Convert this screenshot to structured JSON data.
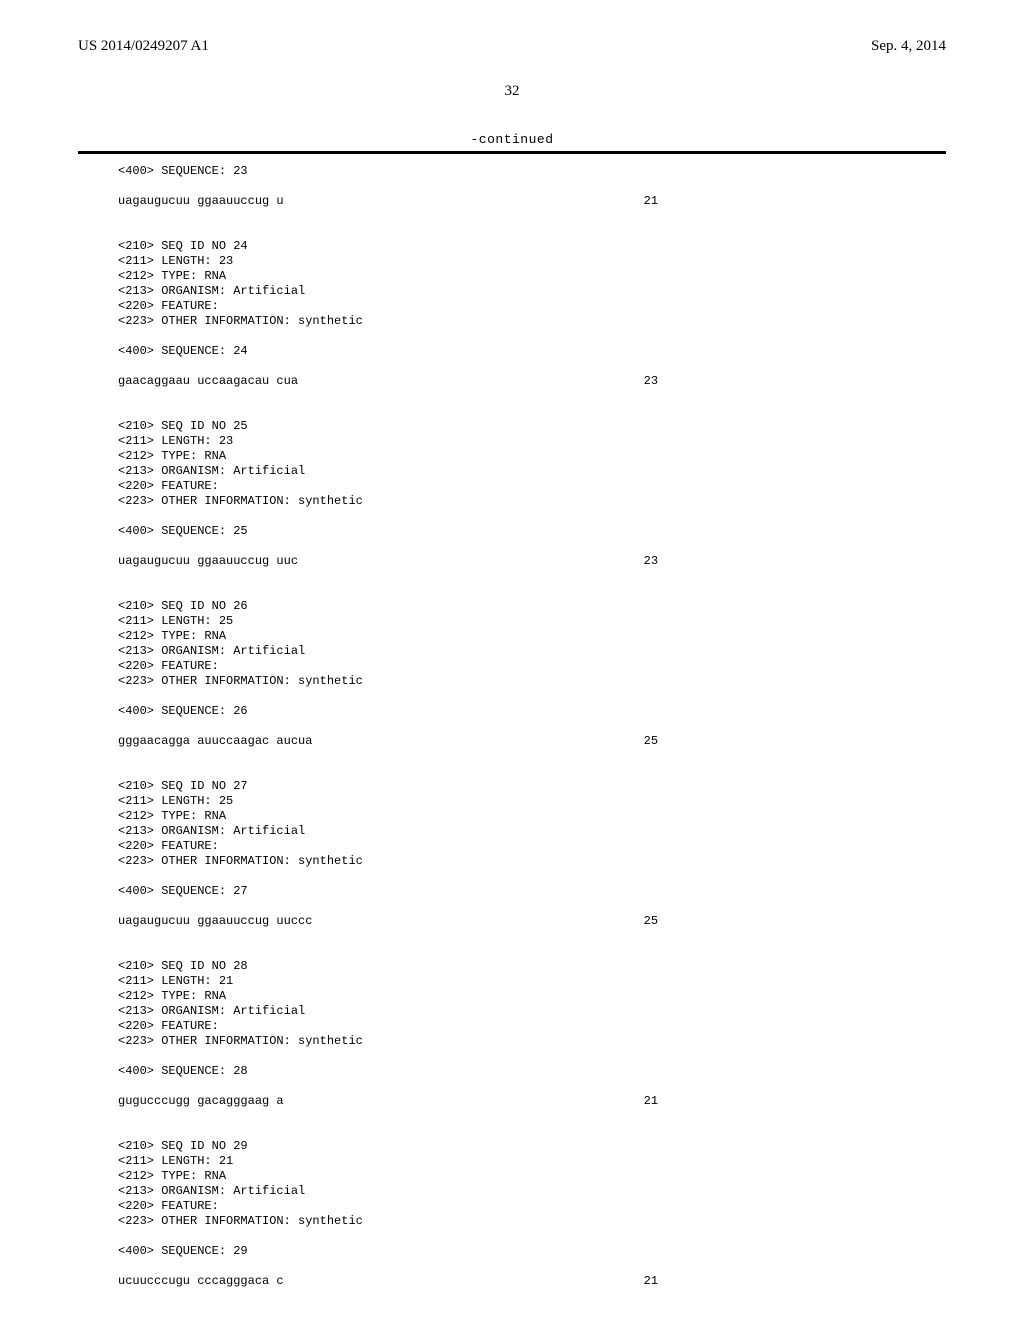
{
  "header": {
    "pub_number": "US 2014/0249207 A1",
    "pub_date": "Sep. 4, 2014"
  },
  "page_number": "32",
  "continued_label": "-continued",
  "entries": [
    {
      "pre_lines": [
        "<400> SEQUENCE: 23"
      ],
      "sequence": "uagaugucuu ggaauuccug u",
      "length": "21"
    },
    {
      "pre_lines": [
        "<210> SEQ ID NO 24",
        "<211> LENGTH: 23",
        "<212> TYPE: RNA",
        "<213> ORGANISM: Artificial",
        "<220> FEATURE:",
        "<223> OTHER INFORMATION: synthetic",
        "",
        "<400> SEQUENCE: 24"
      ],
      "sequence": "gaacaggaau uccaagacau cua",
      "length": "23"
    },
    {
      "pre_lines": [
        "<210> SEQ ID NO 25",
        "<211> LENGTH: 23",
        "<212> TYPE: RNA",
        "<213> ORGANISM: Artificial",
        "<220> FEATURE:",
        "<223> OTHER INFORMATION: synthetic",
        "",
        "<400> SEQUENCE: 25"
      ],
      "sequence": "uagaugucuu ggaauuccug uuc",
      "length": "23"
    },
    {
      "pre_lines": [
        "<210> SEQ ID NO 26",
        "<211> LENGTH: 25",
        "<212> TYPE: RNA",
        "<213> ORGANISM: Artificial",
        "<220> FEATURE:",
        "<223> OTHER INFORMATION: synthetic",
        "",
        "<400> SEQUENCE: 26"
      ],
      "sequence": "gggaacagga auuccaagac aucua",
      "length": "25"
    },
    {
      "pre_lines": [
        "<210> SEQ ID NO 27",
        "<211> LENGTH: 25",
        "<212> TYPE: RNA",
        "<213> ORGANISM: Artificial",
        "<220> FEATURE:",
        "<223> OTHER INFORMATION: synthetic",
        "",
        "<400> SEQUENCE: 27"
      ],
      "sequence": "uagaugucuu ggaauuccug uuccc",
      "length": "25"
    },
    {
      "pre_lines": [
        "<210> SEQ ID NO 28",
        "<211> LENGTH: 21",
        "<212> TYPE: RNA",
        "<213> ORGANISM: Artificial",
        "<220> FEATURE:",
        "<223> OTHER INFORMATION: synthetic",
        "",
        "<400> SEQUENCE: 28"
      ],
      "sequence": "gugucccugg gacagggaag a",
      "length": "21"
    },
    {
      "pre_lines": [
        "<210> SEQ ID NO 29",
        "<211> LENGTH: 21",
        "<212> TYPE: RNA",
        "<213> ORGANISM: Artificial",
        "<220> FEATURE:",
        "<223> OTHER INFORMATION: synthetic",
        "",
        "<400> SEQUENCE: 29"
      ],
      "sequence": "ucuucccugu cccagggaca c",
      "length": "21"
    }
  ]
}
